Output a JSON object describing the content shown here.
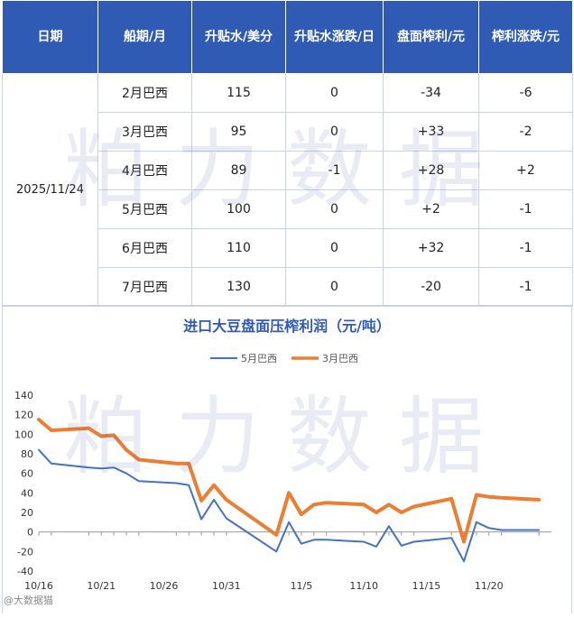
{
  "table": {
    "headers": [
      "日期",
      "船期/月",
      "升贴水/美分",
      "升贴水涨跌/日",
      "盘面榨利/元",
      "榨利涨跌/元"
    ],
    "date": "2025/11/24",
    "rows": [
      {
        "ship": "2月巴西",
        "premium": "115",
        "premium_chg": "0",
        "margin": "-34",
        "margin_chg": "-6"
      },
      {
        "ship": "3月巴西",
        "premium": "95",
        "premium_chg": "0",
        "margin": "+33",
        "margin_chg": "-2"
      },
      {
        "ship": "4月巴西",
        "premium": "89",
        "premium_chg": "-1",
        "margin": "+28",
        "margin_chg": "+2"
      },
      {
        "ship": "5月巴西",
        "premium": "100",
        "premium_chg": "0",
        "margin": "+2",
        "margin_chg": "-1"
      },
      {
        "ship": "6月巴西",
        "premium": "110",
        "premium_chg": "0",
        "margin": "+32",
        "margin_chg": "-1"
      },
      {
        "ship": "7月巴西",
        "premium": "130",
        "premium_chg": "0",
        "margin": "-20",
        "margin_chg": "-1"
      }
    ]
  },
  "watermark": "粕力数据",
  "corner_logo": "@大数据猫",
  "colors": {
    "header_bg": "#2f5bb4",
    "negative": "#e02020",
    "series_5": "#4472c4",
    "series_3": "#ed7d31"
  },
  "chart_data": {
    "type": "line",
    "title": "进口大豆盘面压榨利润（元/吨）",
    "legend_position": "top-center",
    "grid": false,
    "ylim": [
      -40,
      140
    ],
    "yticks": [
      -40,
      -20,
      0,
      20,
      40,
      60,
      80,
      100,
      120,
      140
    ],
    "x_dates": [
      "10/16",
      "10/17",
      "10/20",
      "10/21",
      "10/22",
      "10/23",
      "10/24",
      "10/27",
      "10/28",
      "10/29",
      "10/30",
      "10/31",
      "11/3",
      "11/4",
      "11/5",
      "11/6",
      "11/7",
      "11/10",
      "11/11",
      "11/12",
      "11/13",
      "11/14",
      "11/17",
      "11/18",
      "11/19",
      "11/20",
      "11/21",
      "11/24"
    ],
    "x_tick_labels": [
      "10/16",
      "10/21",
      "10/26",
      "10/31",
      "11/5",
      "11/10",
      "11/15",
      "11/20"
    ],
    "series": [
      {
        "name": "5月巴西",
        "color": "#4472c4",
        "values": [
          84,
          70,
          66,
          65,
          66,
          60,
          52,
          50,
          48,
          13,
          33,
          14,
          -20,
          10,
          -12,
          -8,
          -8,
          -10,
          -15,
          6,
          -14,
          -10,
          -6,
          -30,
          10,
          4,
          2,
          2
        ]
      },
      {
        "name": "3月巴西",
        "color": "#ed7d31",
        "values": [
          115,
          104,
          106,
          98,
          99,
          84,
          74,
          70,
          70,
          32,
          48,
          33,
          -3,
          40,
          18,
          28,
          30,
          28,
          20,
          28,
          20,
          26,
          34,
          -10,
          38,
          36,
          35,
          33
        ]
      }
    ]
  }
}
